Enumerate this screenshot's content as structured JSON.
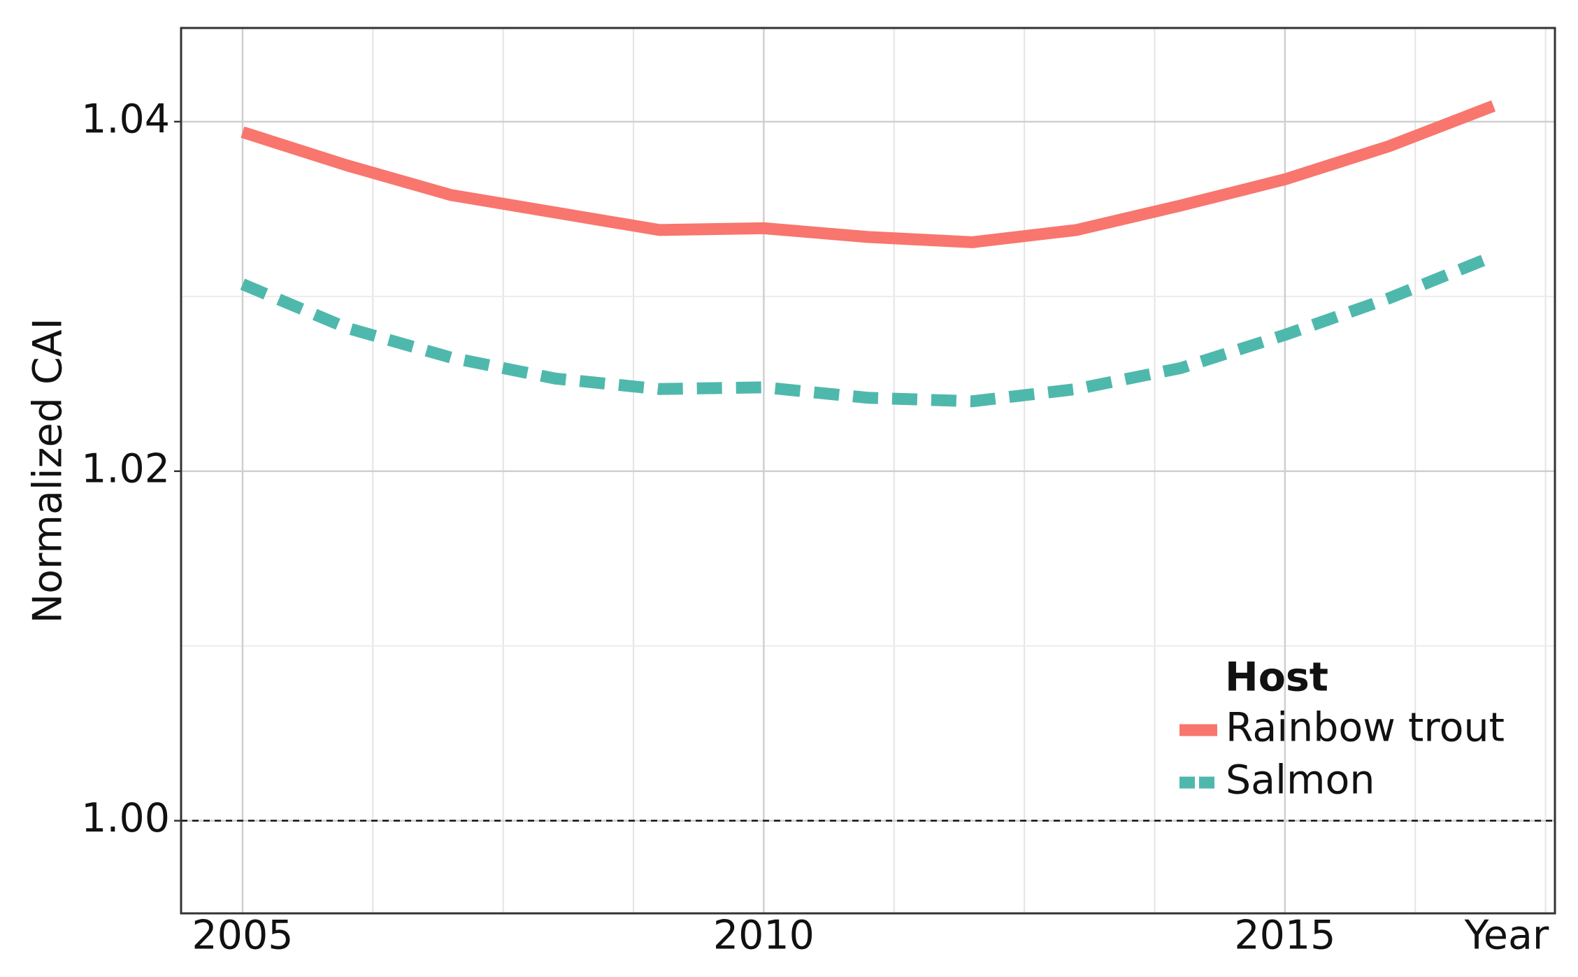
{
  "chart_data": {
    "type": "line",
    "x_label": "Year",
    "y_label": "Normalized CAI",
    "x": [
      2005,
      2006,
      2007,
      2008,
      2009,
      2010,
      2011,
      2012,
      2013,
      2014,
      2015,
      2016,
      2017
    ],
    "series": [
      {
        "name": "Rainbow trout",
        "color": "#f8766d",
        "linestyle": "solid",
        "values": [
          1.0394,
          1.0375,
          1.0358,
          1.0348,
          1.0338,
          1.0339,
          1.0334,
          1.0331,
          1.0338,
          1.0352,
          1.0367,
          1.0386,
          1.0409
        ]
      },
      {
        "name": "Salmon",
        "color": "#4fb8ad",
        "linestyle": "dashed",
        "values": [
          1.0307,
          1.0282,
          1.0265,
          1.0253,
          1.0247,
          1.0248,
          1.0242,
          1.024,
          1.0247,
          1.0259,
          1.0278,
          1.0299,
          1.0323
        ]
      }
    ],
    "legend_title": "Host",
    "legend_position": "lower right",
    "xlim": [
      2004.41,
      2017.59
    ],
    "ylim": [
      0.9947,
      1.04536
    ],
    "xticks": [
      2005,
      2010,
      2015
    ],
    "yticks": [
      {
        "value": 1,
        "label": "1.00"
      },
      1.02,
      1.04
    ],
    "x_gridlines": [
      2005,
      2006.25,
      2007.5,
      2008.75,
      2010,
      2011.25,
      2012.5,
      2013.75,
      2015,
      2016.25,
      2017.5
    ],
    "y_gridlines": [
      1.01,
      1.03
    ],
    "grid": true,
    "reference_line": 1
  }
}
